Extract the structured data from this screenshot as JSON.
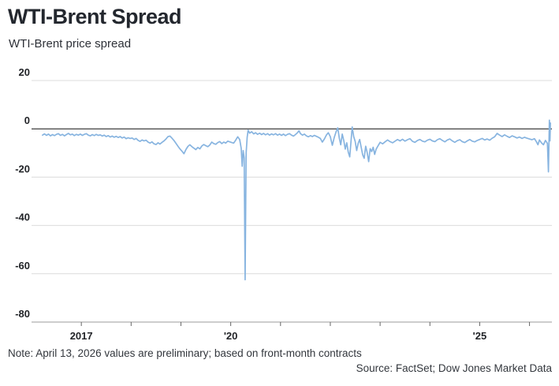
{
  "header": {
    "title": "WTI-Brent Spread",
    "subtitle": "WTI-Brent price spread"
  },
  "footer": {
    "note": "Note: April 13, 2026 values are preliminary; based on front-month contracts",
    "source": "Source: FactSet; Dow Jones Market Data"
  },
  "chart_data": {
    "type": "line",
    "title": "WTI-Brent Spread",
    "subtitle": "WTI-Brent price spread",
    "xlabel": "",
    "ylabel": "",
    "x_range": [
      2016.0,
      2026.45
    ],
    "ylim": [
      -80,
      20
    ],
    "grid": true,
    "legend": "none",
    "colors": {
      "line": "#87b4e0",
      "grid": "#dcdcdc",
      "zero_line": "#111111",
      "axis": "#9b9b9b",
      "tick": "#666666"
    },
    "y_ticks": [
      {
        "value": 20,
        "label": "20"
      },
      {
        "value": 0,
        "label": "0"
      },
      {
        "value": -20,
        "label": "-20"
      },
      {
        "value": -40,
        "label": "-40"
      },
      {
        "value": -60,
        "label": "-60"
      },
      {
        "value": -80,
        "label": "-80"
      }
    ],
    "x_ticks": [
      {
        "year": 2017,
        "label": "2017"
      },
      {
        "year": 2018,
        "label": ""
      },
      {
        "year": 2019,
        "label": ""
      },
      {
        "year": 2020,
        "label": "'20"
      },
      {
        "year": 2021,
        "label": ""
      },
      {
        "year": 2022,
        "label": ""
      },
      {
        "year": 2023,
        "label": ""
      },
      {
        "year": 2024,
        "label": ""
      },
      {
        "year": 2025,
        "label": "'25"
      },
      {
        "year": 2026,
        "label": ""
      }
    ],
    "points": [
      [
        2016.22,
        -2.6
      ],
      [
        2016.26,
        -2.1
      ],
      [
        2016.3,
        -2.7
      ],
      [
        2016.34,
        -2.2
      ],
      [
        2016.38,
        -2.9
      ],
      [
        2016.42,
        -2.4
      ],
      [
        2016.46,
        -2.8
      ],
      [
        2016.5,
        -2.3
      ],
      [
        2016.54,
        -2.0
      ],
      [
        2016.58,
        -2.7
      ],
      [
        2016.62,
        -2.3
      ],
      [
        2016.66,
        -2.9
      ],
      [
        2016.7,
        -2.4
      ],
      [
        2016.74,
        -1.9
      ],
      [
        2016.78,
        -2.5
      ],
      [
        2016.82,
        -2.2
      ],
      [
        2016.86,
        -2.8
      ],
      [
        2016.9,
        -2.3
      ],
      [
        2016.94,
        -2.6
      ],
      [
        2016.98,
        -2.2
      ],
      [
        2017.02,
        -2.7
      ],
      [
        2017.06,
        -2.3
      ],
      [
        2017.1,
        -2.0
      ],
      [
        2017.14,
        -2.6
      ],
      [
        2017.18,
        -2.9
      ],
      [
        2017.22,
        -2.4
      ],
      [
        2017.26,
        -2.8
      ],
      [
        2017.3,
        -2.3
      ],
      [
        2017.34,
        -2.7
      ],
      [
        2017.38,
        -2.5
      ],
      [
        2017.42,
        -3.0
      ],
      [
        2017.46,
        -2.6
      ],
      [
        2017.5,
        -3.2
      ],
      [
        2017.54,
        -2.8
      ],
      [
        2017.58,
        -3.4
      ],
      [
        2017.62,
        -3.0
      ],
      [
        2017.66,
        -3.5
      ],
      [
        2017.7,
        -3.1
      ],
      [
        2017.74,
        -3.6
      ],
      [
        2017.78,
        -3.2
      ],
      [
        2017.82,
        -3.8
      ],
      [
        2017.86,
        -3.4
      ],
      [
        2017.9,
        -4.1
      ],
      [
        2017.94,
        -3.7
      ],
      [
        2017.98,
        -4.0
      ],
      [
        2018.02,
        -3.8
      ],
      [
        2018.06,
        -4.4
      ],
      [
        2018.1,
        -4.0
      ],
      [
        2018.14,
        -4.8
      ],
      [
        2018.18,
        -5.2
      ],
      [
        2018.22,
        -4.6
      ],
      [
        2018.26,
        -5.0
      ],
      [
        2018.3,
        -4.7
      ],
      [
        2018.34,
        -5.5
      ],
      [
        2018.38,
        -5.9
      ],
      [
        2018.42,
        -5.4
      ],
      [
        2018.46,
        -6.2
      ],
      [
        2018.5,
        -6.5
      ],
      [
        2018.54,
        -5.8
      ],
      [
        2018.58,
        -6.3
      ],
      [
        2018.62,
        -5.6
      ],
      [
        2018.66,
        -5.0
      ],
      [
        2018.7,
        -4.2
      ],
      [
        2018.74,
        -3.2
      ],
      [
        2018.78,
        -3.0
      ],
      [
        2018.82,
        -3.9
      ],
      [
        2018.86,
        -4.8
      ],
      [
        2018.9,
        -6.0
      ],
      [
        2018.94,
        -7.2
      ],
      [
        2018.98,
        -8.3
      ],
      [
        2019.02,
        -9.2
      ],
      [
        2019.06,
        -10.3
      ],
      [
        2019.1,
        -8.6
      ],
      [
        2019.14,
        -7.3
      ],
      [
        2019.18,
        -6.6
      ],
      [
        2019.22,
        -7.4
      ],
      [
        2019.26,
        -8.0
      ],
      [
        2019.3,
        -8.6
      ],
      [
        2019.34,
        -7.7
      ],
      [
        2019.38,
        -8.3
      ],
      [
        2019.42,
        -7.1
      ],
      [
        2019.46,
        -6.5
      ],
      [
        2019.5,
        -7.0
      ],
      [
        2019.54,
        -7.4
      ],
      [
        2019.58,
        -6.7
      ],
      [
        2019.62,
        -5.5
      ],
      [
        2019.66,
        -6.1
      ],
      [
        2019.7,
        -6.4
      ],
      [
        2019.74,
        -5.7
      ],
      [
        2019.78,
        -5.3
      ],
      [
        2019.82,
        -6.1
      ],
      [
        2019.86,
        -5.5
      ],
      [
        2019.9,
        -5.9
      ],
      [
        2019.94,
        -5.1
      ],
      [
        2019.98,
        -5.4
      ],
      [
        2020.02,
        -5.7
      ],
      [
        2020.06,
        -5.9
      ],
      [
        2020.1,
        -4.7
      ],
      [
        2020.14,
        -3.3
      ],
      [
        2020.18,
        -4.4
      ],
      [
        2020.21,
        -8.0
      ],
      [
        2020.23,
        -15.5
      ],
      [
        2020.25,
        -9.0
      ],
      [
        2020.27,
        -12.0
      ],
      [
        2020.29,
        -62.5
      ],
      [
        2020.31,
        -10.0
      ],
      [
        2020.33,
        -3.5
      ],
      [
        2020.35,
        -0.6
      ],
      [
        2020.38,
        -1.8
      ],
      [
        2020.42,
        -1.2
      ],
      [
        2020.46,
        -2.1
      ],
      [
        2020.5,
        -1.6
      ],
      [
        2020.54,
        -2.3
      ],
      [
        2020.58,
        -1.8
      ],
      [
        2020.62,
        -2.4
      ],
      [
        2020.66,
        -1.9
      ],
      [
        2020.7,
        -2.5
      ],
      [
        2020.74,
        -2.0
      ],
      [
        2020.78,
        -2.6
      ],
      [
        2020.82,
        -2.1
      ],
      [
        2020.86,
        -2.5
      ],
      [
        2020.9,
        -2.0
      ],
      [
        2020.94,
        -2.6
      ],
      [
        2020.98,
        -2.2
      ],
      [
        2021.02,
        -2.7
      ],
      [
        2021.06,
        -2.2
      ],
      [
        2021.1,
        -2.8
      ],
      [
        2021.14,
        -2.3
      ],
      [
        2021.18,
        -2.0
      ],
      [
        2021.22,
        -2.6
      ],
      [
        2021.26,
        -3.0
      ],
      [
        2021.3,
        -2.4
      ],
      [
        2021.34,
        -1.6
      ],
      [
        2021.37,
        -0.8
      ],
      [
        2021.4,
        -2.0
      ],
      [
        2021.44,
        -2.6
      ],
      [
        2021.48,
        -2.2
      ],
      [
        2021.52,
        -2.9
      ],
      [
        2021.56,
        -3.3
      ],
      [
        2021.6,
        -2.8
      ],
      [
        2021.64,
        -3.2
      ],
      [
        2021.68,
        -2.7
      ],
      [
        2021.72,
        -3.1
      ],
      [
        2021.76,
        -3.5
      ],
      [
        2021.8,
        -4.0
      ],
      [
        2021.84,
        -5.5
      ],
      [
        2021.88,
        -4.2
      ],
      [
        2021.92,
        -2.6
      ],
      [
        2021.96,
        -1.6
      ],
      [
        2022.0,
        -3.2
      ],
      [
        2022.04,
        -6.8
      ],
      [
        2022.08,
        -3.5
      ],
      [
        2022.12,
        -1.0
      ],
      [
        2022.15,
        0.4
      ],
      [
        2022.18,
        -3.8
      ],
      [
        2022.21,
        -6.6
      ],
      [
        2022.24,
        -2.2
      ],
      [
        2022.27,
        -4.8
      ],
      [
        2022.3,
        -8.4
      ],
      [
        2022.33,
        -5.8
      ],
      [
        2022.36,
        -9.6
      ],
      [
        2022.39,
        -11.6
      ],
      [
        2022.42,
        -4.0
      ],
      [
        2022.44,
        0.8
      ],
      [
        2022.47,
        -3.2
      ],
      [
        2022.5,
        -5.2
      ],
      [
        2022.53,
        -9.0
      ],
      [
        2022.56,
        -6.0
      ],
      [
        2022.59,
        -4.4
      ],
      [
        2022.62,
        -7.6
      ],
      [
        2022.65,
        -10.8
      ],
      [
        2022.68,
        -12.2
      ],
      [
        2022.71,
        -7.2
      ],
      [
        2022.74,
        -9.8
      ],
      [
        2022.77,
        -13.6
      ],
      [
        2022.8,
        -8.2
      ],
      [
        2022.83,
        -9.4
      ],
      [
        2022.86,
        -7.6
      ],
      [
        2022.89,
        -10.6
      ],
      [
        2022.92,
        -8.4
      ],
      [
        2022.96,
        -7.0
      ],
      [
        2023.0,
        -5.6
      ],
      [
        2023.05,
        -6.2
      ],
      [
        2023.1,
        -5.4
      ],
      [
        2023.15,
        -4.6
      ],
      [
        2023.2,
        -5.3
      ],
      [
        2023.25,
        -5.8
      ],
      [
        2023.3,
        -5.1
      ],
      [
        2023.35,
        -4.4
      ],
      [
        2023.4,
        -5.0
      ],
      [
        2023.45,
        -4.3
      ],
      [
        2023.5,
        -5.1
      ],
      [
        2023.55,
        -4.5
      ],
      [
        2023.6,
        -4.1
      ],
      [
        2023.65,
        -5.2
      ],
      [
        2023.7,
        -5.6
      ],
      [
        2023.75,
        -4.8
      ],
      [
        2023.8,
        -4.4
      ],
      [
        2023.85,
        -5.1
      ],
      [
        2023.9,
        -5.4
      ],
      [
        2023.95,
        -4.7
      ],
      [
        2024.0,
        -4.3
      ],
      [
        2024.05,
        -5.0
      ],
      [
        2024.1,
        -5.3
      ],
      [
        2024.15,
        -4.5
      ],
      [
        2024.2,
        -4.1
      ],
      [
        2024.25,
        -4.8
      ],
      [
        2024.3,
        -5.4
      ],
      [
        2024.35,
        -4.6
      ],
      [
        2024.4,
        -4.2
      ],
      [
        2024.45,
        -5.0
      ],
      [
        2024.5,
        -5.6
      ],
      [
        2024.55,
        -4.9
      ],
      [
        2024.6,
        -4.5
      ],
      [
        2024.65,
        -5.3
      ],
      [
        2024.7,
        -5.7
      ],
      [
        2024.75,
        -5.0
      ],
      [
        2024.8,
        -4.4
      ],
      [
        2024.85,
        -5.1
      ],
      [
        2024.9,
        -5.4
      ],
      [
        2024.95,
        -4.8
      ],
      [
        2025.0,
        -4.4
      ],
      [
        2025.05,
        -4.0
      ],
      [
        2025.1,
        -4.6
      ],
      [
        2025.15,
        -4.2
      ],
      [
        2025.2,
        -4.7
      ],
      [
        2025.25,
        -3.9
      ],
      [
        2025.3,
        -3.3
      ],
      [
        2025.35,
        -1.9
      ],
      [
        2025.4,
        -2.6
      ],
      [
        2025.45,
        -3.2
      ],
      [
        2025.5,
        -2.5
      ],
      [
        2025.55,
        -3.1
      ],
      [
        2025.6,
        -3.6
      ],
      [
        2025.65,
        -2.9
      ],
      [
        2025.7,
        -3.3
      ],
      [
        2025.75,
        -3.8
      ],
      [
        2025.8,
        -3.4
      ],
      [
        2025.85,
        -4.0
      ],
      [
        2025.9,
        -3.5
      ],
      [
        2025.95,
        -3.9
      ],
      [
        2026.0,
        -4.2
      ],
      [
        2026.05,
        -4.5
      ],
      [
        2026.1,
        -4.1
      ],
      [
        2026.14,
        -5.4
      ],
      [
        2026.17,
        -6.6
      ],
      [
        2026.2,
        -4.6
      ],
      [
        2026.24,
        -5.8
      ],
      [
        2026.28,
        -6.6
      ],
      [
        2026.32,
        -4.8
      ],
      [
        2026.36,
        -6.0
      ],
      [
        2026.38,
        -17.8
      ],
      [
        2026.4,
        3.6
      ],
      [
        2026.41,
        -5.0
      ],
      [
        2026.42,
        2.4
      ]
    ]
  }
}
